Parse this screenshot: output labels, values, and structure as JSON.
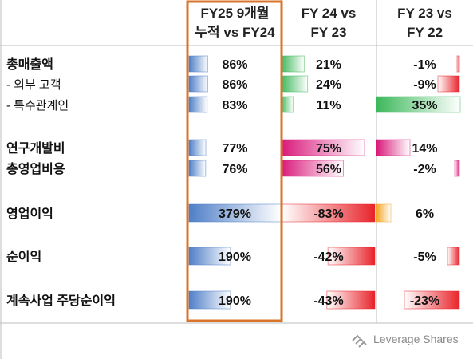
{
  "chart_data": {
    "type": "table",
    "columns": [
      {
        "header_lines": [
          "FY25 9개월",
          "누적 vs FY24"
        ],
        "fill": "#4f7fc7"
      },
      {
        "header_lines": [
          "FY 24 vs",
          "FY 23"
        ],
        "fill": "#d9d9d9"
      },
      {
        "header_lines": [
          "FY 23 vs",
          "FY 22"
        ],
        "fill": "#d9d9d9"
      }
    ],
    "rows": [
      {
        "label": "총매출액",
        "sub": false,
        "values": [
          86,
          21,
          -1
        ],
        "labels": [
          "86%",
          "21%",
          "-1%"
        ],
        "palette": [
          "blue",
          "green",
          "red"
        ]
      },
      {
        "label": "- 외부 고객",
        "sub": true,
        "values": [
          86,
          24,
          -9
        ],
        "labels": [
          "86%",
          "24%",
          "-9%"
        ],
        "palette": [
          "blue",
          "green",
          "red"
        ]
      },
      {
        "label": "- 특수관계인",
        "sub": true,
        "values": [
          83,
          11,
          35
        ],
        "labels": [
          "83%",
          "11%",
          "35%"
        ],
        "palette": [
          "blue",
          "green",
          "green"
        ]
      },
      {
        "label": "연구개발비",
        "sub": false,
        "values": [
          77,
          75,
          14
        ],
        "labels": [
          "77%",
          "75%",
          "14%"
        ],
        "palette": [
          "blue",
          "magenta",
          "magenta"
        ]
      },
      {
        "label": "총영업비용",
        "sub": false,
        "values": [
          76,
          56,
          -2
        ],
        "labels": [
          "76%",
          "56%",
          "-2%"
        ],
        "palette": [
          "blue",
          "magenta",
          "magenta"
        ]
      },
      {
        "label": "영업이익",
        "sub": false,
        "values": [
          379,
          -83,
          6
        ],
        "labels": [
          "379%",
          "-83%",
          "6%"
        ],
        "palette": [
          "blue",
          "red",
          "orange"
        ]
      },
      {
        "label": "순이익",
        "sub": false,
        "values": [
          190,
          -42,
          -5
        ],
        "labels": [
          "190%",
          "-42%",
          "-5%"
        ],
        "palette": [
          "blue",
          "red",
          "red"
        ]
      },
      {
        "label": "계속사업 주당순이익",
        "sub": false,
        "values": [
          190,
          -43,
          -23
        ],
        "labels": [
          "190%",
          "-43%",
          "-23%"
        ],
        "palette": [
          "blue",
          "red",
          "red"
        ]
      }
    ],
    "colors": {
      "blue": "#4f7fc7",
      "green": "#3cb85a",
      "red": "#e8232a",
      "magenta": "#d9187a",
      "orange": "#f5a623",
      "highlight_border": "#d9752a"
    }
  },
  "brand": {
    "name": "Leverage Shares"
  }
}
